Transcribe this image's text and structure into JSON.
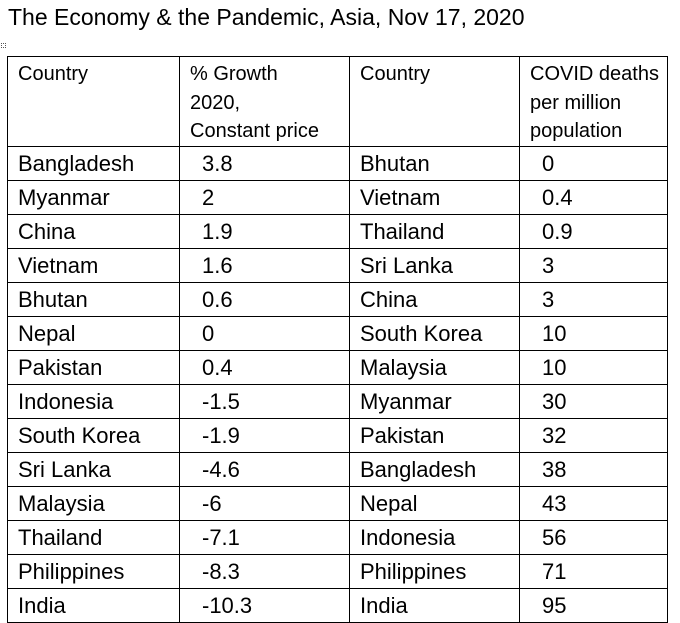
{
  "title": "The Economy & the Pandemic, Asia, Nov 17, 2020",
  "headers": {
    "country_a": "Country",
    "growth": [
      "% Growth",
      "2020,",
      "Constant price"
    ],
    "country_b": "Country",
    "deaths": [
      "COVID deaths",
      "per million",
      "population"
    ]
  },
  "rows": [
    {
      "country_a": "Bangladesh",
      "growth": "3.8",
      "country_b": "Bhutan",
      "deaths": "0"
    },
    {
      "country_a": "Myanmar",
      "growth": "2",
      "country_b": "Vietnam",
      "deaths": "0.4"
    },
    {
      "country_a": "China",
      "growth": "1.9",
      "country_b": "Thailand",
      "deaths": "0.9"
    },
    {
      "country_a": "Vietnam",
      "growth": "1.6",
      "country_b": "Sri Lanka",
      "deaths": "3"
    },
    {
      "country_a": "Bhutan",
      "growth": "0.6",
      "country_b": "China",
      "deaths": "3"
    },
    {
      "country_a": "Nepal",
      "growth": "0",
      "country_b": "South Korea",
      "deaths": "10"
    },
    {
      "country_a": "Pakistan",
      "growth": "0.4",
      "country_b": "Malaysia",
      "deaths": "10"
    },
    {
      "country_a": "Indonesia",
      "growth": "-1.5",
      "country_b": "Myanmar",
      "deaths": "30"
    },
    {
      "country_a": "South Korea",
      "growth": "-1.9",
      "country_b": "Pakistan",
      "deaths": "32"
    },
    {
      "country_a": "Sri Lanka",
      "growth": "-4.6",
      "country_b": "Bangladesh",
      "deaths": "38"
    },
    {
      "country_a": "Malaysia",
      "growth": "-6",
      "country_b": "Nepal",
      "deaths": "43"
    },
    {
      "country_a": "Thailand",
      "growth": "-7.1",
      "country_b": "Indonesia",
      "deaths": "56"
    },
    {
      "country_a": "Philippines",
      "growth": "-8.3",
      "country_b": "Philippines",
      "deaths": "71"
    },
    {
      "country_a": "India",
      "growth": "-10.3",
      "country_b": "India",
      "deaths": "95"
    }
  ]
}
